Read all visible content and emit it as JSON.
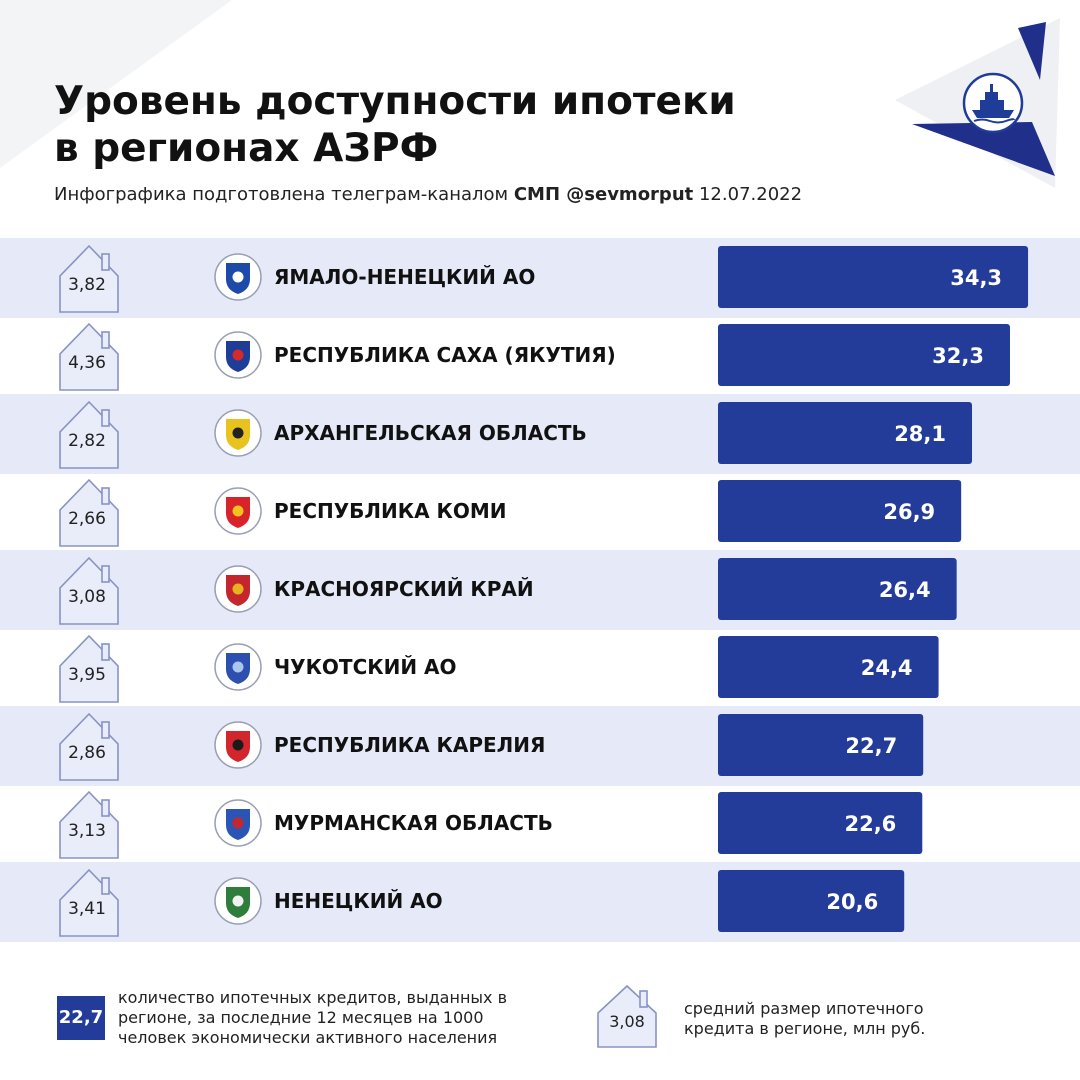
{
  "header": {
    "title_line1": "Уровень доступности ипотеки",
    "title_line2": "в регионах АЗРФ",
    "subtitle_prefix": "Инфографика подготовлена телеграм-каналом",
    "subtitle_channel": "СМП @sevmorput",
    "subtitle_date": "12.07.2022",
    "logo_icon": "icebreaker-ship-icon"
  },
  "colors": {
    "bar": "#243c99",
    "stripe": "#e6eaf8",
    "house_fill": "#e9edfa",
    "house_stroke": "#8893c4",
    "deco_navy": "#1f2f8a"
  },
  "chart_data": {
    "type": "bar",
    "orientation": "horizontal",
    "categories": [
      "ЯМАЛО-НЕНЕЦКИЙ АО",
      "РЕСПУБЛИКА САХА (ЯКУТИЯ)",
      "АРХАНГЕЛЬСКАЯ ОБЛАСТЬ",
      "РЕСПУБЛИКА КОМИ",
      "КРАСНОЯРСКИЙ КРАЙ",
      "ЧУКОТСКИЙ АО",
      "РЕСПУБЛИКА КАРЕЛИЯ",
      "МУРМАНСКАЯ ОБЛАСТЬ",
      "НЕНЕЦКИЙ АО"
    ],
    "values": [
      34.3,
      32.3,
      28.1,
      26.9,
      26.4,
      24.4,
      22.7,
      22.6,
      20.6
    ],
    "value_labels": [
      "34,3",
      "32,3",
      "28,1",
      "26,9",
      "26,4",
      "24,4",
      "22,7",
      "22,6",
      "20,6"
    ],
    "secondary_values": [
      3.82,
      4.36,
      2.82,
      2.66,
      3.08,
      3.95,
      2.86,
      3.13,
      3.41
    ],
    "secondary_labels": [
      "3,82",
      "4,36",
      "2,82",
      "2,66",
      "3,08",
      "3,95",
      "2,86",
      "3,13",
      "3,41"
    ],
    "emblem_icons": [
      "yamal-emblem-icon",
      "sakha-emblem-icon",
      "arkhangelsk-emblem-icon",
      "komi-emblem-icon",
      "krasnoyarsk-emblem-icon",
      "chukotka-emblem-icon",
      "karelia-emblem-icon",
      "murmansk-emblem-icon",
      "nenets-emblem-icon"
    ],
    "emblem_colors": [
      [
        "#1d4aa8",
        "#ffffff"
      ],
      [
        "#1f3c99",
        "#d42a2a"
      ],
      [
        "#e8c21e",
        "#222222"
      ],
      [
        "#d8232a",
        "#f2c21e"
      ],
      [
        "#c4262e",
        "#e8b21e"
      ],
      [
        "#2c4fb0",
        "#a9c6ee"
      ],
      [
        "#d2262e",
        "#1a1a1a"
      ],
      [
        "#2b55b5",
        "#c8262e"
      ],
      [
        "#2e7d3a",
        "#f1f1f1"
      ]
    ],
    "title": "Уровень доступности ипотеки в регионах АЗРФ",
    "legend": "bottom"
  },
  "legend": {
    "bar_sample": "22,7",
    "bar_text": "количество ипотечных кредитов, выданных в регионе, за последние 12 месяцев на 1000 человек экономически активного населения",
    "house_sample": "3,08",
    "house_text": "средний размер ипотечного кредита в регионе, млн руб.",
    "house_icon": "house-icon"
  }
}
